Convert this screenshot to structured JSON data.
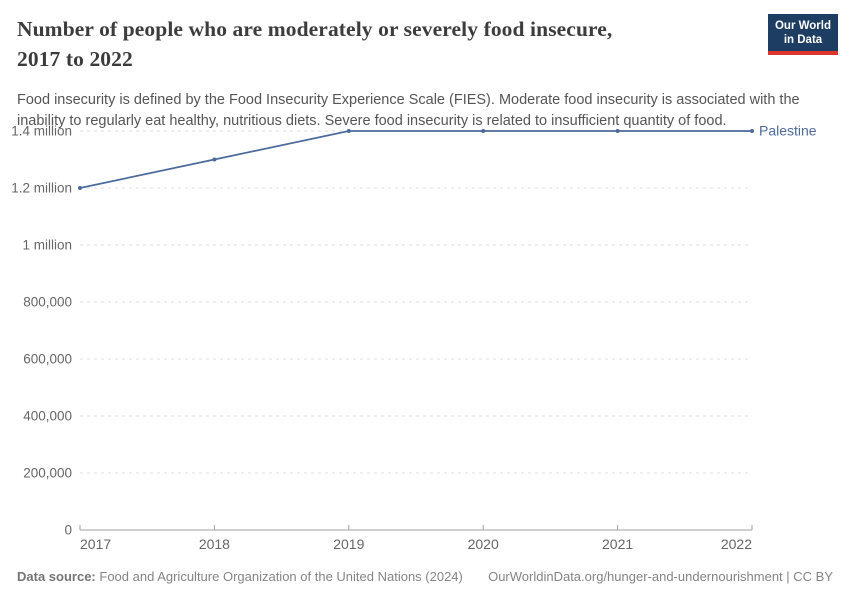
{
  "header": {
    "title_line1": "Number of people who are moderately or severely food insecure,",
    "title_line2": "2017 to 2022",
    "subtitle": "Food insecurity is defined by the Food Insecurity Experience Scale (FIES). Moderate food insecurity is associated with the inability to regularly eat healthy, nutritious diets. Severe food insecurity is related to insufficient quantity of food."
  },
  "logo": {
    "line1": "Our World",
    "line2": "in Data",
    "bg_color": "#1d3d63",
    "stripe_color": "#dc352b"
  },
  "chart_data": {
    "type": "line",
    "title": "Number of people who are moderately or severely food insecure, 2017 to 2022",
    "x": [
      2017,
      2018,
      2019,
      2020,
      2021,
      2022
    ],
    "series": [
      {
        "name": "Palestine",
        "values": [
          1200000,
          1300000,
          1400000,
          1400000,
          1400000,
          1400000
        ],
        "color": "#4c6a9c"
      }
    ],
    "xlabel": "",
    "ylabel": "",
    "xlim": [
      2017,
      2022
    ],
    "ylim": [
      0,
      1400000
    ],
    "grid": "dashed horizontal",
    "legend_position": "right-of-line-end",
    "x_ticks": [
      "2017",
      "2018",
      "2019",
      "2020",
      "2021",
      "2022"
    ],
    "y_ticks": [
      {
        "value": 0,
        "label": "0"
      },
      {
        "value": 200000,
        "label": "200,000"
      },
      {
        "value": 400000,
        "label": "400,000"
      },
      {
        "value": 600000,
        "label": "600,000"
      },
      {
        "value": 800000,
        "label": "800,000"
      },
      {
        "value": 1000000,
        "label": "1 million"
      },
      {
        "value": 1200000,
        "label": "1.2 million"
      },
      {
        "value": 1400000,
        "label": "1.4 million"
      }
    ],
    "colors": {
      "grid": "#dddddd",
      "axis": "#a0a0a0",
      "tick_text": "#666666"
    }
  },
  "footer": {
    "datasource_label": "Data source:",
    "datasource_text": "Food and Agriculture Organization of the United Nations (2024)",
    "credit_text": "OurWorldinData.org/hunger-and-undernourishment | CC BY"
  }
}
